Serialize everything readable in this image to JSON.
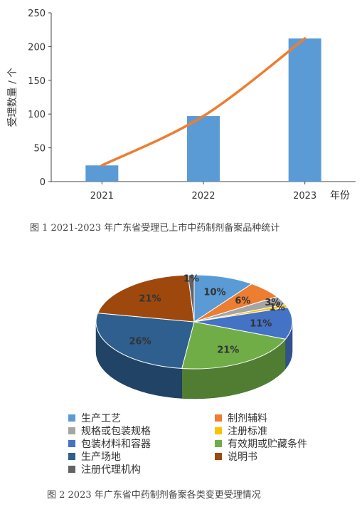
{
  "figure1": {
    "caption": "图 1   2021-2023 年广东省受理已上市中药制剂备案品种统计",
    "chart_data": {
      "type": "bar",
      "categories": [
        "2021",
        "2022",
        "2023"
      ],
      "series": [
        {
          "values": [
            24,
            97,
            212
          ]
        }
      ],
      "trend_line": [
        24,
        97,
        212
      ],
      "ylabel": "受理数量 / 个",
      "xlabel": "年份",
      "ylim": [
        0,
        250
      ],
      "yticks": [
        "0",
        "50",
        "100",
        "150",
        "200",
        "250"
      ],
      "grid": false,
      "colors": {
        "bar": "#5b9bd5",
        "line": "#ed7d31"
      }
    }
  },
  "figure2": {
    "caption": "图 2   2023 年广东省中药制剂备案各类变更受理情况",
    "chart_data": {
      "type": "pie",
      "style": "3d",
      "slices": [
        {
          "label": "生产工艺",
          "value": 10,
          "pct": "10%",
          "color": "#5b9bd5"
        },
        {
          "label": "制剂辅料",
          "value": 6,
          "pct": "6%",
          "color": "#ed7d31"
        },
        {
          "label": "规格或包装规格",
          "value": 3,
          "pct": "3%",
          "color": "#a5a5a5"
        },
        {
          "label": "注册标准",
          "value": 1,
          "pct": "1%",
          "color": "#ffc000"
        },
        {
          "label": "包装材料和容器",
          "value": 11,
          "pct": "11%",
          "color": "#4472c4"
        },
        {
          "label": "有效期或贮藏条件",
          "value": 21,
          "pct": "21%",
          "color": "#70ad47"
        },
        {
          "label": "生产场地",
          "value": 26,
          "pct": "26%",
          "color": "#2e5f8e"
        },
        {
          "label": "说明书",
          "value": 21,
          "pct": "21%",
          "color": "#9e480e"
        },
        {
          "label": "注册代理机构",
          "value": 1,
          "pct": "1%",
          "color": "#636363"
        }
      ],
      "legend_placement": "bottom"
    }
  }
}
